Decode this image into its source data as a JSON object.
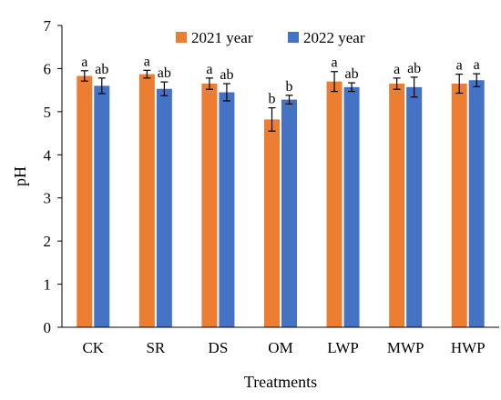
{
  "chart_data": {
    "type": "bar",
    "xlabel": "Treatments",
    "ylabel": "pH",
    "ylim": [
      0,
      7
    ],
    "yticks": [
      "0",
      "1",
      "2",
      "3",
      "4",
      "5",
      "6",
      "7"
    ],
    "categories": [
      "CK",
      "SR",
      "DS",
      "OM",
      "LWP",
      "MWP",
      "HWP"
    ],
    "legend_position": "top",
    "series": [
      {
        "name": "2021 year",
        "color": "#ED7D31",
        "values": [
          5.83,
          5.87,
          5.65,
          4.82,
          5.7,
          5.65,
          5.65
        ],
        "errors": [
          0.12,
          0.09,
          0.13,
          0.27,
          0.23,
          0.13,
          0.22
        ],
        "labels": [
          "a",
          "a",
          "a",
          "b",
          "a",
          "a",
          "a"
        ]
      },
      {
        "name": "2022 year",
        "color": "#4472C4",
        "values": [
          5.6,
          5.53,
          5.45,
          5.28,
          5.57,
          5.57,
          5.73
        ],
        "errors": [
          0.18,
          0.16,
          0.2,
          0.1,
          0.1,
          0.23,
          0.15
        ],
        "labels": [
          "ab",
          "ab",
          "ab",
          "b",
          "ab",
          "ab",
          "a"
        ]
      }
    ]
  }
}
